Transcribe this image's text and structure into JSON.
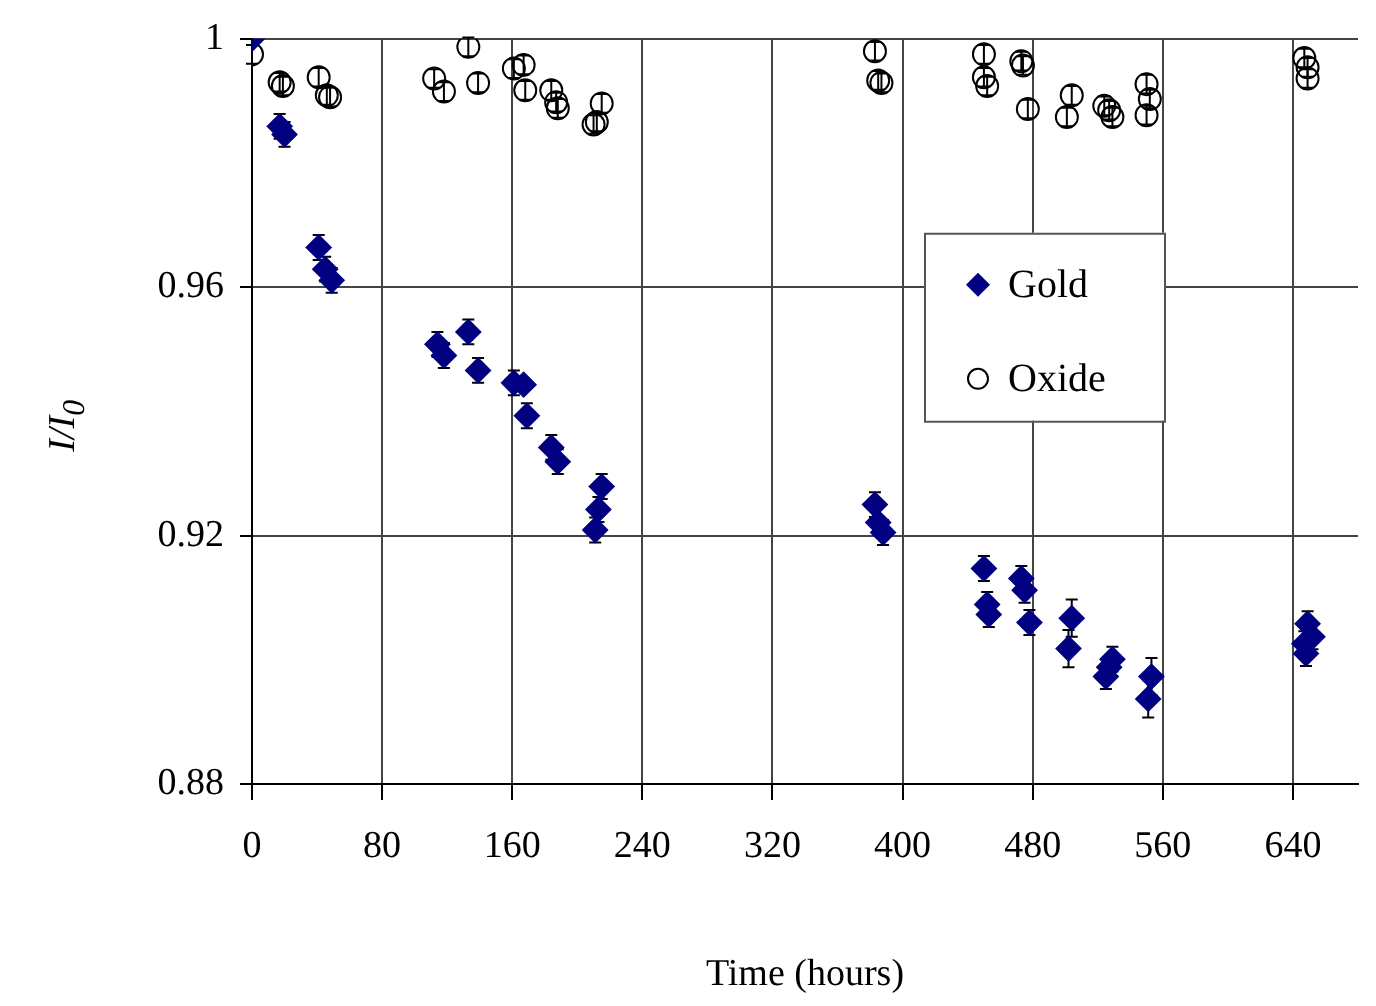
{
  "chart_data": {
    "type": "scatter",
    "xlabel": "Time (hours)",
    "ylabel": "I/I$_{0}$",
    "xlim": [
      0,
      680
    ],
    "xticks": [
      0,
      80,
      160,
      240,
      320,
      400,
      480,
      560,
      640
    ],
    "ylim": [
      0.88,
      1
    ],
    "yticks": [
      0.88,
      0.92,
      0.96,
      {
        "value": 1,
        "label": "1"
      }
    ],
    "grid": true,
    "legend": "right",
    "series": [
      {
        "name": "Gold",
        "color": "#000080",
        "marker": "diamond",
        "x": [
          0,
          17,
          20,
          41,
          45,
          49,
          114,
          118,
          133,
          139,
          161,
          167,
          169,
          184,
          188,
          215,
          213,
          211,
          383,
          385,
          388,
          450,
          452,
          453,
          473,
          475,
          478,
          504,
          502,
          529,
          527,
          525,
          553,
          551,
          649,
          652,
          647,
          648
        ],
        "values": [
          1.0,
          0.9859,
          0.9846,
          0.9664,
          0.9629,
          0.9611,
          0.9508,
          0.949,
          0.9528,
          0.9466,
          0.9446,
          0.9443,
          0.9393,
          0.9342,
          0.9319,
          0.9279,
          0.9242,
          0.9209,
          0.925,
          0.9221,
          0.9205,
          0.9147,
          0.9089,
          0.9073,
          0.9131,
          0.9112,
          0.906,
          0.9067,
          0.9018,
          0.9001,
          0.8988,
          0.8973,
          0.8973,
          0.8937,
          0.9058,
          0.9037,
          0.9026,
          0.901
        ],
        "errors": [
          null,
          0.002,
          0.002,
          0.002,
          0.002,
          0.002,
          0.002,
          0.002,
          0.002,
          0.002,
          0.002,
          null,
          0.002,
          0.002,
          0.002,
          0.002,
          0.002,
          0.002,
          0.002,
          null,
          0.002,
          0.002,
          0.002,
          0.002,
          0.002,
          0.002,
          0.002,
          0.003,
          0.003,
          0.002,
          null,
          0.002,
          0.003,
          0.003,
          0.002,
          0.002,
          0.002,
          0.002
        ]
      },
      {
        "name": "Oxide",
        "color": "#000000",
        "marker": "circle",
        "x": [
          0,
          17,
          19,
          41,
          46,
          48,
          112,
          118,
          133,
          139,
          161,
          167,
          168,
          184,
          187,
          188,
          215,
          212,
          210,
          383,
          385,
          387,
          450,
          450,
          452,
          473,
          474,
          477,
          504,
          501,
          524,
          527,
          529,
          550,
          552,
          550,
          647,
          649,
          649
        ],
        "values": [
          0.9975,
          0.993,
          0.9924,
          0.9938,
          0.9909,
          0.9906,
          0.9936,
          0.9915,
          0.9987,
          0.9929,
          0.9952,
          0.9958,
          0.9917,
          0.9917,
          0.9898,
          0.9888,
          0.9896,
          0.9866,
          0.9862,
          0.998,
          0.9933,
          0.9929,
          0.9975,
          0.9938,
          0.9924,
          0.9964,
          0.9957,
          0.9887,
          0.9909,
          0.9874,
          0.9892,
          0.9885,
          0.9874,
          0.9927,
          0.9903,
          0.9877,
          0.9969,
          0.9954,
          0.9936
        ],
        "errors": [
          0.0015,
          0.0015,
          0.0015,
          0.0015,
          0.0015,
          0.0015,
          0.0015,
          0.0015,
          0.0015,
          0.0015,
          0.0015,
          0.0015,
          0.0015,
          0.0015,
          0.0015,
          0.0015,
          0.0015,
          0.0015,
          0.0015,
          0.0015,
          0.0015,
          0.0015,
          0.0015,
          0.0015,
          0.0015,
          0.0015,
          0.0015,
          0.0015,
          0.0015,
          0.0015,
          0.0015,
          0.0015,
          0.0015,
          0.0015,
          0.0015,
          0.0015,
          0.0015,
          0.0015,
          0.0015
        ]
      }
    ]
  }
}
